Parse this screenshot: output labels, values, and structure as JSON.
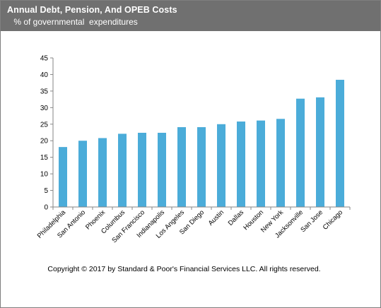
{
  "header": {
    "title": "Annual Debt, Pension, And OPEB Costs",
    "subtitle": " % of governmental  expenditures"
  },
  "footer": {
    "copyright": "Copyright © 2017 by Standard & Poor's Financial Services LLC. All rights reserved."
  },
  "colors": {
    "bar": "#4bacd9",
    "header_bg": "#707070",
    "axis": "#868686"
  },
  "chart_data": {
    "type": "bar",
    "title": "Annual Debt, Pension, And OPEB Costs",
    "subtitle": "% of governmental expenditures",
    "categories": [
      "Philadelphia",
      "San Antonio",
      "Phoenix",
      "Columbus",
      "San Francisco",
      "Indianapolis",
      "Los Angeles",
      "San Diego",
      "Austin",
      "Dallas",
      "Houston",
      "New York",
      "Jacksonville",
      "San Jose",
      "Chicago"
    ],
    "values": [
      18.1,
      20.0,
      20.8,
      22.1,
      22.4,
      22.4,
      24.1,
      24.1,
      25.0,
      25.8,
      26.1,
      26.6,
      32.7,
      33.1,
      38.4
    ],
    "ylim": [
      0,
      45
    ],
    "yticks": [
      0,
      5,
      10,
      15,
      20,
      25,
      30,
      35,
      40,
      45
    ],
    "grid": false,
    "legend": "none"
  }
}
